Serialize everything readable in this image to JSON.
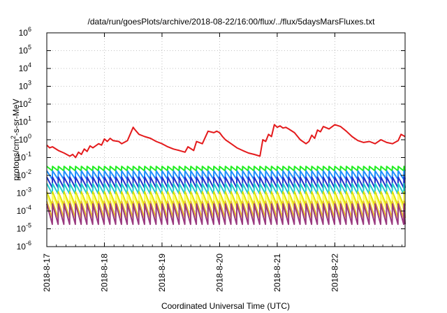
{
  "chart_data": {
    "type": "line",
    "title": "/data/run/goesPlots/archive/2018-08-22/16:00/flux/../flux/5daysMarsFluxes.txt",
    "xlabel": "Coordinated Universal Time (UTC)",
    "ylabel_parts": {
      "base": "protons/cm",
      "exp": "2",
      "rest": "-s-sr-MeV"
    },
    "yscale": "log",
    "ylim": [
      1e-06,
      1000000.0
    ],
    "xlim": [
      0,
      6.22
    ],
    "y_ticks": [
      {
        "value": -6,
        "base": "10",
        "exp": "-6"
      },
      {
        "value": -5,
        "base": "10",
        "exp": "-5"
      },
      {
        "value": -4,
        "base": "10",
        "exp": "-4"
      },
      {
        "value": -3,
        "base": "10",
        "exp": "-3"
      },
      {
        "value": -2,
        "base": "10",
        "exp": "-2"
      },
      {
        "value": -1,
        "base": "10",
        "exp": "-1"
      },
      {
        "value": 0,
        "base": "10",
        "exp": "0"
      },
      {
        "value": 1,
        "base": "10",
        "exp": "1"
      },
      {
        "value": 2,
        "base": "10",
        "exp": "2"
      },
      {
        "value": 3,
        "base": "10",
        "exp": "3"
      },
      {
        "value": 4,
        "base": "10",
        "exp": "4"
      },
      {
        "value": 5,
        "base": "10",
        "exp": "5"
      },
      {
        "value": 6,
        "base": "10",
        "exp": "6"
      }
    ],
    "x_ticks": [
      {
        "value": 0,
        "label": "2018-8-17"
      },
      {
        "value": 1,
        "label": "2018-8-18"
      },
      {
        "value": 2,
        "label": "2018-8-19"
      },
      {
        "value": 3,
        "label": "2018-8-20"
      },
      {
        "value": 4,
        "label": "2018-8-21"
      },
      {
        "value": 5,
        "label": "2018-8-22"
      }
    ],
    "grid": true,
    "series": [
      {
        "color": "#e41a1c",
        "x": [
          0.0,
          0.05,
          0.1,
          0.2,
          0.3,
          0.4,
          0.45,
          0.5,
          0.55,
          0.6,
          0.65,
          0.7,
          0.75,
          0.8,
          0.9,
          0.95,
          1.0,
          1.05,
          1.1,
          1.15,
          1.25,
          1.3,
          1.4,
          1.5,
          1.52,
          1.6,
          1.7,
          1.8,
          1.9,
          2.0,
          2.1,
          2.2,
          2.3,
          2.4,
          2.45,
          2.55,
          2.6,
          2.7,
          2.8,
          2.9,
          2.95,
          3.0,
          3.05,
          3.1,
          3.2,
          3.3,
          3.4,
          3.5,
          3.6,
          3.7,
          3.75,
          3.8,
          3.85,
          3.9,
          3.95,
          4.0,
          4.05,
          4.1,
          4.15,
          4.2,
          4.3,
          4.4,
          4.5,
          4.55,
          4.6,
          4.65,
          4.7,
          4.75,
          4.8,
          4.9,
          5.0,
          5.1,
          5.2,
          5.3,
          5.4,
          5.5,
          5.6,
          5.7,
          5.8,
          5.9,
          6.0,
          6.1,
          6.15,
          6.22
        ],
        "y": [
          0.5,
          0.35,
          0.4,
          0.25,
          0.18,
          0.12,
          0.15,
          0.1,
          0.2,
          0.15,
          0.3,
          0.22,
          0.45,
          0.35,
          0.6,
          0.5,
          1.1,
          0.8,
          1.2,
          0.9,
          0.8,
          0.6,
          0.9,
          5.0,
          4.0,
          2.0,
          1.5,
          1.2,
          0.8,
          0.6,
          0.4,
          0.3,
          0.25,
          0.2,
          0.4,
          0.25,
          0.8,
          0.6,
          3.0,
          2.5,
          3.0,
          2.5,
          1.5,
          1.0,
          0.6,
          0.35,
          0.25,
          0.18,
          0.15,
          0.12,
          1.0,
          0.8,
          2.0,
          1.5,
          7.0,
          5.0,
          6.0,
          4.5,
          5.0,
          4.0,
          2.5,
          1.0,
          0.6,
          0.8,
          1.8,
          1.2,
          3.5,
          2.8,
          5.5,
          4.0,
          7.0,
          5.5,
          3.0,
          1.5,
          0.9,
          0.7,
          0.8,
          0.6,
          1.0,
          0.7,
          0.6,
          0.9,
          2.0,
          1.5
        ]
      },
      {
        "color": "#22ee22",
        "sawtooth": {
          "start": 0.0,
          "period": 0.1,
          "high": 0.032,
          "low": 0.018
        }
      },
      {
        "color": "#1e90ff",
        "sawtooth": {
          "start": 0.0,
          "period": 0.1,
          "high": 0.018,
          "low": 0.006
        }
      },
      {
        "color": "#2233cc",
        "sawtooth": {
          "start": 0.0,
          "period": 0.1,
          "high": 0.008,
          "low": 0.002
        }
      },
      {
        "color": "#22cccc",
        "sawtooth": {
          "start": 0.0,
          "period": 0.1,
          "high": 0.0035,
          "low": 0.0009
        }
      },
      {
        "color": "#dde000",
        "sawtooth": {
          "start": 0.0,
          "period": 0.1,
          "high": 0.0012,
          "low": 0.0002
        }
      },
      {
        "color": "#ffff66",
        "sawtooth": {
          "start": 0.0,
          "period": 0.1,
          "high": 0.0008,
          "low": 0.00012
        }
      },
      {
        "color": "#e7c030",
        "sawtooth": {
          "start": 0.0,
          "period": 0.1,
          "high": 0.00035,
          "low": 4e-05
        }
      },
      {
        "color": "#9a3a80",
        "sawtooth": {
          "start": 0.0,
          "period": 0.1,
          "high": 0.00025,
          "low": 1.8e-05
        }
      }
    ]
  }
}
